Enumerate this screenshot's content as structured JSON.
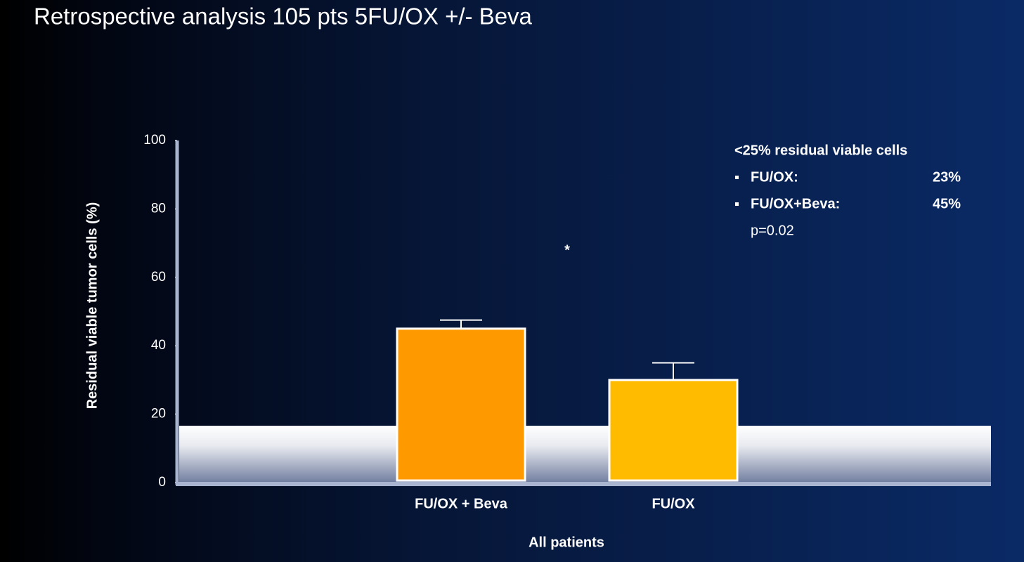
{
  "chart_data": {
    "type": "bar",
    "title": "Retrospective analysis 105 pts 5FU/OX +/- Beva",
    "y_label": "Residual viable tumor cells (%)",
    "x_label": "All patients",
    "categories": [
      "FU/OX + Beva",
      "FU/OX"
    ],
    "values": [
      45,
      30
    ],
    "errors": [
      2.5,
      5
    ],
    "colors": [
      "#ff9900",
      "#ffbb00"
    ],
    "ylim": [
      0,
      100
    ],
    "yticks": [
      0,
      20,
      40,
      60,
      80,
      100
    ],
    "significance": "*",
    "annotation": {
      "heading": "<25% residual viable cells",
      "items": [
        {
          "label": "FU/OX:",
          "value": "23%"
        },
        {
          "label": "FU/OX+Beva:",
          "value": "45%"
        }
      ],
      "note": "p=0.02"
    }
  }
}
